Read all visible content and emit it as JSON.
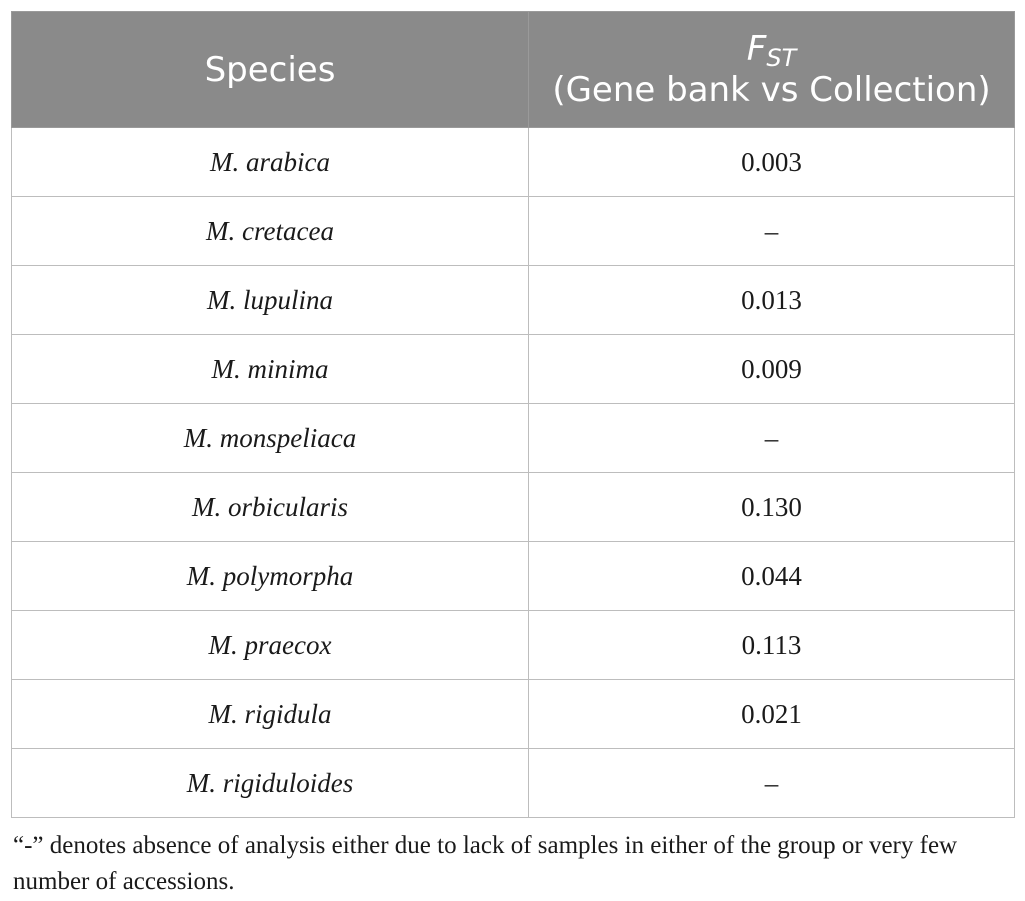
{
  "table": {
    "header": {
      "species": "Species",
      "fst_symbol": "F",
      "fst_subscript": "ST",
      "fst_subtitle": "(Gene bank vs Collection)"
    },
    "rows": [
      {
        "species": "M. arabica",
        "fst": "0.003"
      },
      {
        "species": "M. cretacea",
        "fst": "–"
      },
      {
        "species": "M. lupulina",
        "fst": "0.013"
      },
      {
        "species": "M. minima",
        "fst": "0.009"
      },
      {
        "species": "M. monspeliaca",
        "fst": "–"
      },
      {
        "species": "M. orbicularis",
        "fst": "0.130"
      },
      {
        "species": "M. polymorpha",
        "fst": "0.044"
      },
      {
        "species": "M. praecox",
        "fst": "0.113"
      },
      {
        "species": "M. rigidula",
        "fst": "0.021"
      },
      {
        "species": "M. rigiduloides",
        "fst": "–"
      }
    ]
  },
  "footnote": "“-” denotes absence of analysis either due to lack of samples in either of the group or very few number of accessions.",
  "colors": {
    "header_bg": "#8a8a8a",
    "header_text": "#ffffff",
    "grid": "#bdbdbd"
  }
}
